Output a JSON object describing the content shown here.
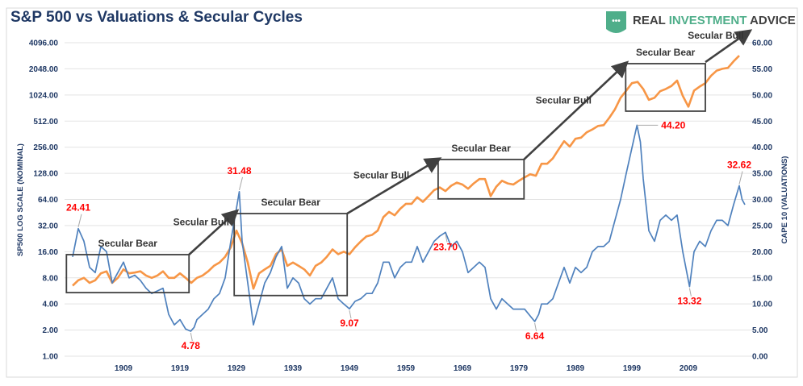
{
  "chart_data": {
    "type": "line",
    "title": "S&P 500 vs Valuations & Secular Cycles",
    "logo": {
      "text_a": "REAL ",
      "text_b": "INVESTMENT",
      "text_c": " ADVICE",
      "shield_color": "#4fae8a"
    },
    "xticks": [
      1909,
      1919,
      1929,
      1939,
      1949,
      1959,
      1969,
      1979,
      1989,
      1999,
      2009
    ],
    "xlim": [
      1899,
      2020
    ],
    "left_axis": {
      "label": "SP500 LOG SCALE (NOMINAL)",
      "scale": "log2",
      "ylim": [
        1,
        4096
      ],
      "ticks": [
        "1.00",
        "2.00",
        "4.00",
        "8.00",
        "16.00",
        "32.00",
        "64.00",
        "128.00",
        "256.00",
        "512.00",
        "1024.00",
        "2048.00",
        "4096.00"
      ]
    },
    "right_axis": {
      "label": "CAPE 10 (VALUATIONS)",
      "scale": "linear",
      "ylim": [
        0,
        60
      ],
      "ticks": [
        "0.00",
        "5.00",
        "10.00",
        "15.00",
        "20.00",
        "25.00",
        "30.00",
        "35.00",
        "40.00",
        "45.00",
        "50.00",
        "55.00",
        "60.00"
      ]
    },
    "grid": true,
    "series": [
      {
        "axis": "left",
        "color": "#f79646",
        "points": [
          [
            1900,
            6.5
          ],
          [
            1901,
            7.5
          ],
          [
            1902,
            8
          ],
          [
            1903,
            7
          ],
          [
            1904,
            7.5
          ],
          [
            1905,
            9
          ],
          [
            1906,
            9.5
          ],
          [
            1907,
            7
          ],
          [
            1908,
            8
          ],
          [
            1909,
            10
          ],
          [
            1910,
            9
          ],
          [
            1911,
            9.2
          ],
          [
            1912,
            9.5
          ],
          [
            1913,
            8.5
          ],
          [
            1914,
            8
          ],
          [
            1915,
            8.5
          ],
          [
            1916,
            9.5
          ],
          [
            1917,
            8
          ],
          [
            1918,
            8
          ],
          [
            1919,
            9
          ],
          [
            1920,
            8
          ],
          [
            1921,
            7
          ],
          [
            1922,
            8
          ],
          [
            1923,
            8.5
          ],
          [
            1924,
            9.5
          ],
          [
            1925,
            11
          ],
          [
            1926,
            12
          ],
          [
            1927,
            14
          ],
          [
            1928,
            18
          ],
          [
            1929,
            28
          ],
          [
            1930,
            20
          ],
          [
            1931,
            12
          ],
          [
            1932,
            6
          ],
          [
            1933,
            9
          ],
          [
            1934,
            10
          ],
          [
            1935,
            11
          ],
          [
            1936,
            15
          ],
          [
            1937,
            17
          ],
          [
            1938,
            11
          ],
          [
            1939,
            12
          ],
          [
            1940,
            11
          ],
          [
            1941,
            10
          ],
          [
            1942,
            8.5
          ],
          [
            1943,
            11
          ],
          [
            1944,
            12
          ],
          [
            1945,
            14
          ],
          [
            1946,
            17
          ],
          [
            1947,
            15
          ],
          [
            1948,
            16
          ],
          [
            1949,
            15
          ],
          [
            1950,
            18
          ],
          [
            1951,
            21
          ],
          [
            1952,
            24
          ],
          [
            1953,
            25
          ],
          [
            1954,
            28
          ],
          [
            1955,
            40
          ],
          [
            1956,
            46
          ],
          [
            1957,
            42
          ],
          [
            1958,
            50
          ],
          [
            1959,
            57
          ],
          [
            1960,
            57
          ],
          [
            1961,
            68
          ],
          [
            1962,
            60
          ],
          [
            1963,
            70
          ],
          [
            1964,
            82
          ],
          [
            1965,
            88
          ],
          [
            1966,
            80
          ],
          [
            1967,
            92
          ],
          [
            1968,
            100
          ],
          [
            1969,
            95
          ],
          [
            1970,
            85
          ],
          [
            1971,
            98
          ],
          [
            1972,
            110
          ],
          [
            1973,
            110
          ],
          [
            1974,
            70
          ],
          [
            1975,
            90
          ],
          [
            1976,
            105
          ],
          [
            1977,
            98
          ],
          [
            1978,
            95
          ],
          [
            1979,
            105
          ],
          [
            1980,
            115
          ],
          [
            1981,
            125
          ],
          [
            1982,
            120
          ],
          [
            1983,
            165
          ],
          [
            1984,
            165
          ],
          [
            1985,
            190
          ],
          [
            1986,
            240
          ],
          [
            1987,
            300
          ],
          [
            1988,
            260
          ],
          [
            1989,
            320
          ],
          [
            1990,
            330
          ],
          [
            1991,
            380
          ],
          [
            1992,
            410
          ],
          [
            1993,
            450
          ],
          [
            1994,
            460
          ],
          [
            1995,
            560
          ],
          [
            1996,
            700
          ],
          [
            1997,
            950
          ],
          [
            1998,
            1150
          ],
          [
            1999,
            1400
          ],
          [
            2000,
            1450
          ],
          [
            2001,
            1200
          ],
          [
            2002,
            900
          ],
          [
            2003,
            950
          ],
          [
            2004,
            1130
          ],
          [
            2005,
            1200
          ],
          [
            2006,
            1300
          ],
          [
            2007,
            1500
          ],
          [
            2008,
            1000
          ],
          [
            2009,
            750
          ],
          [
            2010,
            1150
          ],
          [
            2011,
            1280
          ],
          [
            2012,
            1400
          ],
          [
            2013,
            1700
          ],
          [
            2014,
            1950
          ],
          [
            2015,
            2050
          ],
          [
            2016,
            2100
          ],
          [
            2017,
            2500
          ],
          [
            2018,
            2900
          ]
        ]
      },
      {
        "axis": "right",
        "color": "#4f81bd",
        "points": [
          [
            1900,
            19
          ],
          [
            1901,
            24.41
          ],
          [
            1902,
            22
          ],
          [
            1903,
            17
          ],
          [
            1904,
            16
          ],
          [
            1905,
            21
          ],
          [
            1906,
            20
          ],
          [
            1907,
            14
          ],
          [
            1908,
            16
          ],
          [
            1909,
            18
          ],
          [
            1910,
            15
          ],
          [
            1911,
            15.5
          ],
          [
            1912,
            14.5
          ],
          [
            1913,
            13
          ],
          [
            1914,
            12
          ],
          [
            1915,
            12.5
          ],
          [
            1916,
            13
          ],
          [
            1917,
            8
          ],
          [
            1918,
            6
          ],
          [
            1919,
            7
          ],
          [
            1920,
            5.2
          ],
          [
            1920.9,
            4.78
          ],
          [
            1921.5,
            5.5
          ],
          [
            1922,
            7
          ],
          [
            1923,
            8
          ],
          [
            1924,
            9
          ],
          [
            1925,
            11
          ],
          [
            1926,
            12
          ],
          [
            1927,
            15
          ],
          [
            1928,
            22
          ],
          [
            1929.5,
            31.48
          ],
          [
            1930,
            22
          ],
          [
            1931,
            14
          ],
          [
            1932,
            6
          ],
          [
            1933,
            10
          ],
          [
            1934,
            14
          ],
          [
            1935,
            16
          ],
          [
            1936,
            19
          ],
          [
            1937,
            21
          ],
          [
            1938,
            13
          ],
          [
            1939,
            15
          ],
          [
            1940,
            14
          ],
          [
            1941,
            11
          ],
          [
            1942,
            10
          ],
          [
            1943,
            11
          ],
          [
            1944,
            11
          ],
          [
            1945,
            13
          ],
          [
            1946,
            15
          ],
          [
            1947,
            11
          ],
          [
            1948,
            10
          ],
          [
            1949,
            9.07
          ],
          [
            1950,
            10.5
          ],
          [
            1951,
            11
          ],
          [
            1952,
            12
          ],
          [
            1953,
            12
          ],
          [
            1954,
            14
          ],
          [
            1955,
            18
          ],
          [
            1956,
            18
          ],
          [
            1957,
            15
          ],
          [
            1958,
            17
          ],
          [
            1959,
            18
          ],
          [
            1960,
            18
          ],
          [
            1961,
            21
          ],
          [
            1962,
            18
          ],
          [
            1963,
            20
          ],
          [
            1964,
            22
          ],
          [
            1965,
            23
          ],
          [
            1966,
            23.7
          ],
          [
            1967,
            21
          ],
          [
            1968,
            22
          ],
          [
            1969,
            20
          ],
          [
            1970,
            16
          ],
          [
            1971,
            17
          ],
          [
            1972,
            18
          ],
          [
            1973,
            17
          ],
          [
            1974,
            11
          ],
          [
            1975,
            9
          ],
          [
            1976,
            11
          ],
          [
            1977,
            10
          ],
          [
            1978,
            9
          ],
          [
            1979,
            9
          ],
          [
            1980,
            9
          ],
          [
            1981.8,
            6.64
          ],
          [
            1982.5,
            8
          ],
          [
            1983,
            10
          ],
          [
            1984,
            10
          ],
          [
            1985,
            11
          ],
          [
            1986,
            14
          ],
          [
            1987,
            17
          ],
          [
            1988,
            14
          ],
          [
            1989,
            17
          ],
          [
            1990,
            16
          ],
          [
            1991,
            17
          ],
          [
            1992,
            20
          ],
          [
            1993,
            21
          ],
          [
            1994,
            21
          ],
          [
            1995,
            22
          ],
          [
            1996,
            26
          ],
          [
            1997,
            30
          ],
          [
            1998,
            35
          ],
          [
            1999.9,
            44.2
          ],
          [
            2000.5,
            41
          ],
          [
            2001,
            34
          ],
          [
            2002,
            24
          ],
          [
            2003,
            22
          ],
          [
            2004,
            26
          ],
          [
            2005,
            27
          ],
          [
            2006,
            26
          ],
          [
            2007,
            27
          ],
          [
            2008,
            20
          ],
          [
            2009.2,
            13.32
          ],
          [
            2010,
            20
          ],
          [
            2011,
            22
          ],
          [
            2012,
            21
          ],
          [
            2013,
            24
          ],
          [
            2014,
            26
          ],
          [
            2015,
            26
          ],
          [
            2016,
            25
          ],
          [
            2017,
            29
          ],
          [
            2018,
            32.62
          ],
          [
            2018.5,
            30
          ],
          [
            2019,
            29
          ]
        ]
      }
    ],
    "peak_labels": [
      {
        "text": "24.41",
        "year": 1901,
        "value": 24.41,
        "pos": "above"
      },
      {
        "text": "4.78",
        "year": 1920.9,
        "value": 4.78,
        "pos": "below"
      },
      {
        "text": "31.48",
        "year": 1929.5,
        "value": 31.48,
        "pos": "above"
      },
      {
        "text": "9.07",
        "year": 1949,
        "value": 9.07,
        "pos": "below"
      },
      {
        "text": "23.70",
        "year": 1966,
        "value": 23.7,
        "pos": "below"
      },
      {
        "text": "6.64",
        "year": 1981.8,
        "value": 6.64,
        "pos": "below"
      },
      {
        "text": "44.20",
        "year": 1999.9,
        "value": 44.2,
        "pos": "right"
      },
      {
        "text": "13.32",
        "year": 2009.2,
        "value": 13.32,
        "pos": "below"
      },
      {
        "text": "32.62",
        "year": 2018,
        "value": 32.62,
        "pos": "above"
      }
    ],
    "cycles": [
      {
        "text": "Secular Bear",
        "kind": "box",
        "x0": 1898.9,
        "x1": 1920.6,
        "y0": 5.4,
        "y1": 14.8
      },
      {
        "text": "Secular Bull",
        "kind": "arrow",
        "x0": 1920.6,
        "x1": 1928.9,
        "y0": 14.8,
        "y1": 46
      },
      {
        "text": "Secular Bear",
        "kind": "box",
        "x0": 1928.6,
        "x1": 1948.6,
        "y0": 5,
        "y1": 44
      },
      {
        "text": "Secular Bull",
        "kind": "arrow",
        "x0": 1948.6,
        "x1": 1964.7,
        "y0": 44,
        "y1": 185
      },
      {
        "text": "Secular Bear",
        "kind": "box",
        "x0": 1964.7,
        "x1": 1979.9,
        "y0": 65,
        "y1": 185
      },
      {
        "text": "Secular Bull",
        "kind": "arrow",
        "x0": 1979.9,
        "x1": 1997.9,
        "y0": 185,
        "y1": 2350
      },
      {
        "text": "Secular Bear",
        "kind": "box",
        "x0": 1997.9,
        "x1": 2012,
        "y0": 666,
        "y1": 2350
      },
      {
        "text": "Secular Bull",
        "kind": "arrow",
        "x0": 2012,
        "x1": 2019.7,
        "y0": 2450,
        "y1": 5500
      }
    ]
  }
}
